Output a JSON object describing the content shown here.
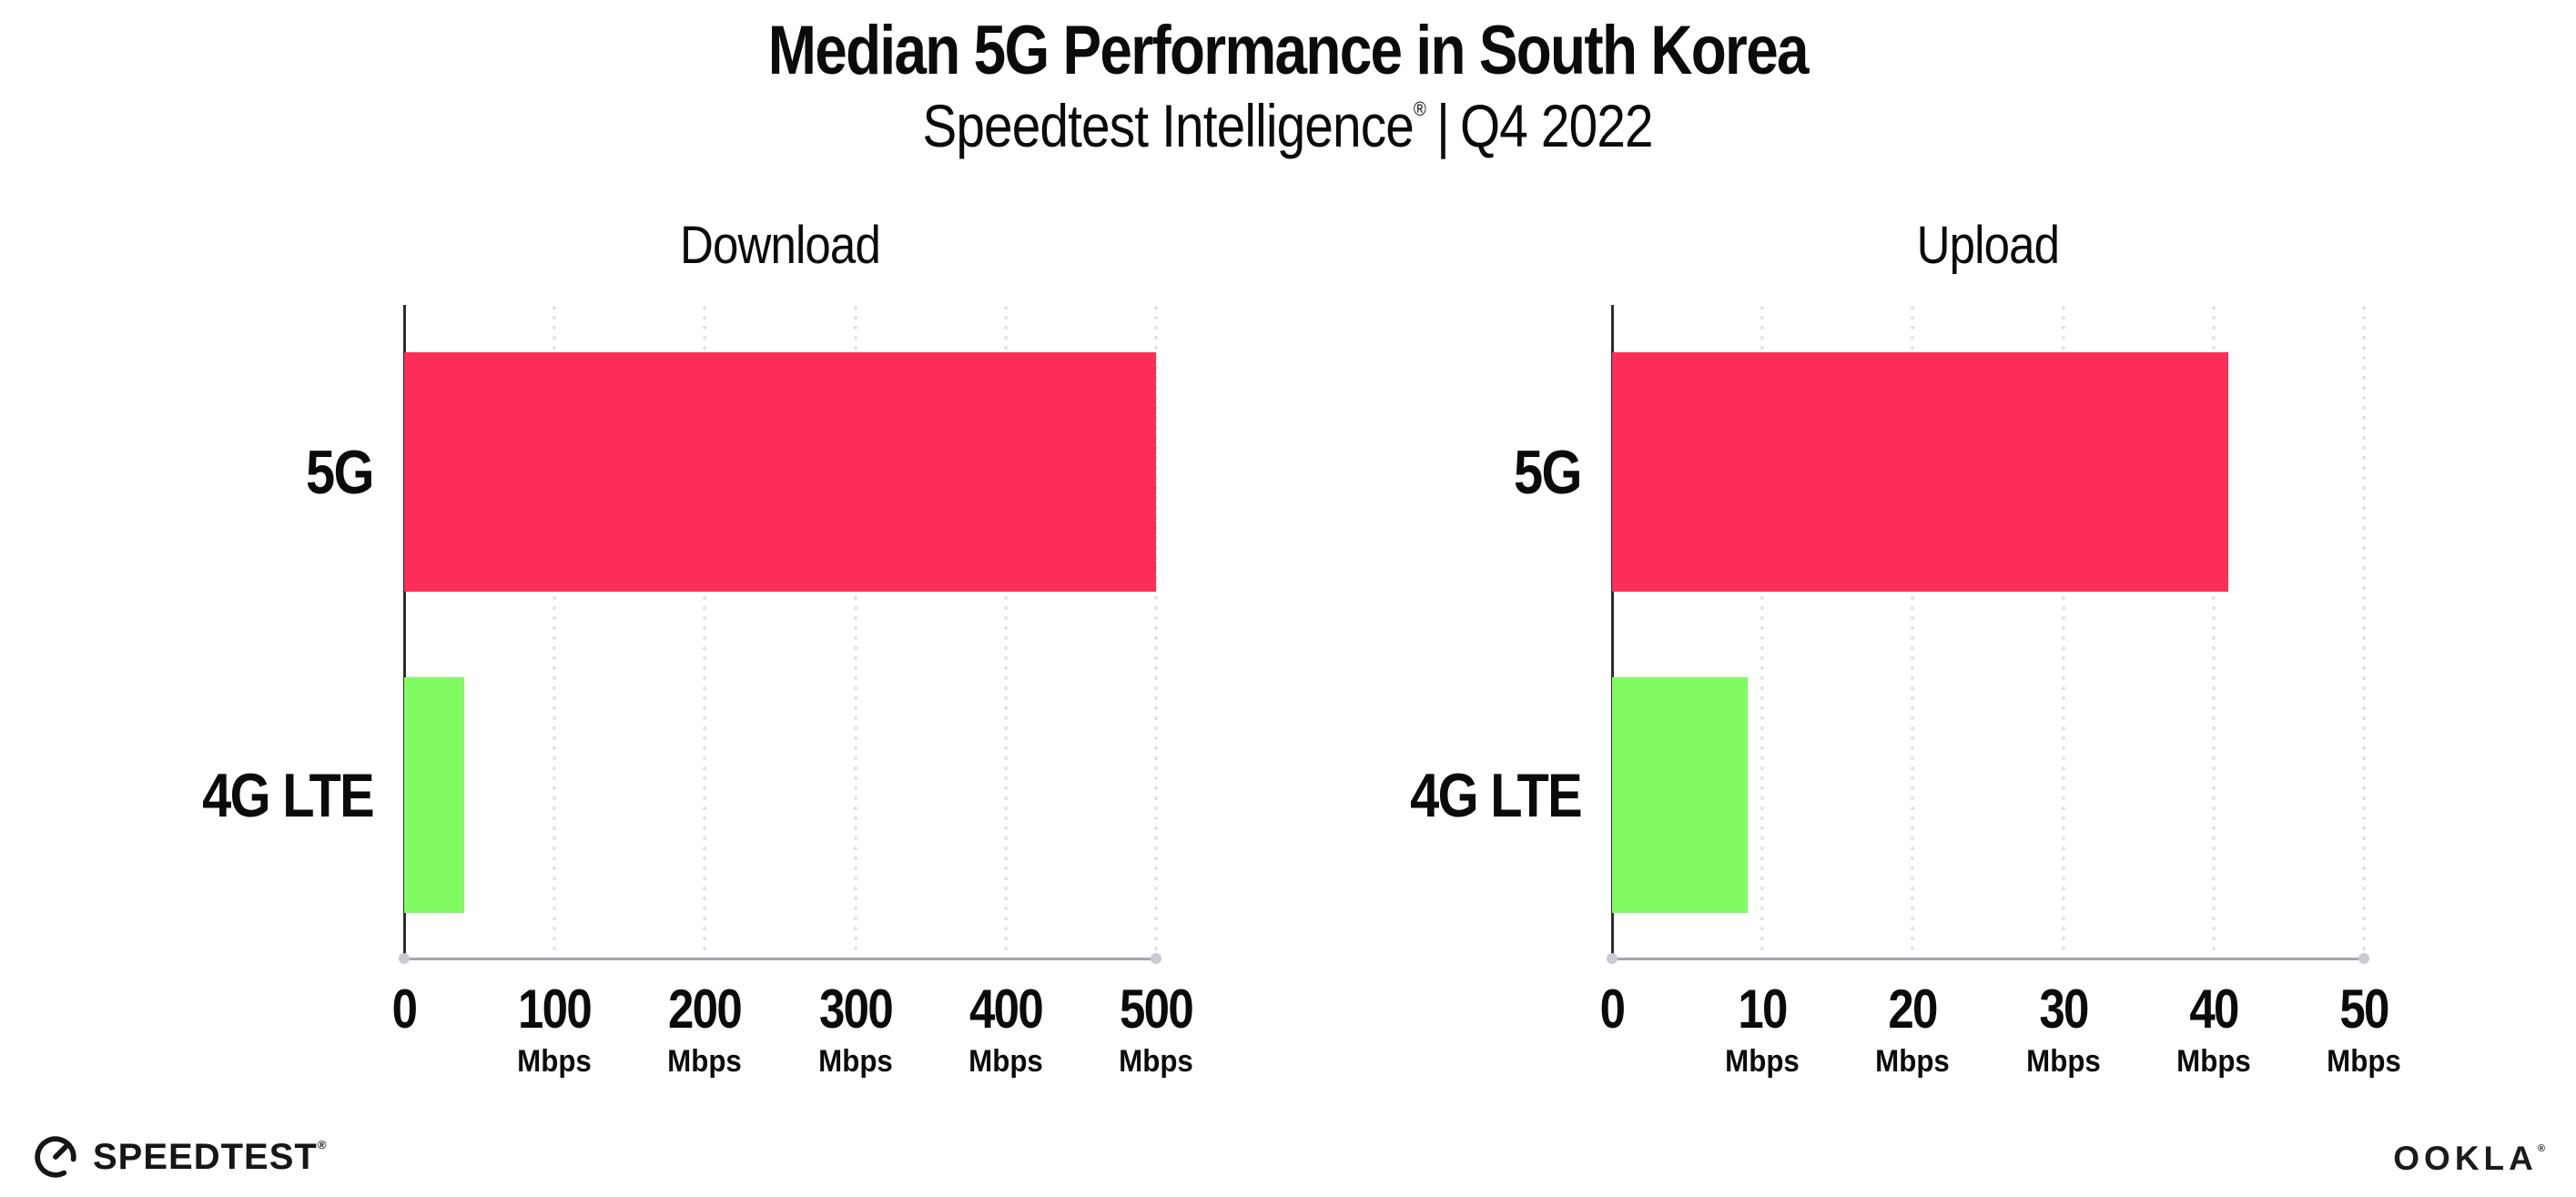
{
  "header": {
    "title": "Median 5G Performance in South Korea",
    "subtitle": {
      "brand": "Speedtest Intelligence",
      "registered": "®",
      "separator": "|",
      "period": "Q4 2022"
    }
  },
  "chart_data": [
    {
      "type": "bar",
      "orientation": "horizontal",
      "title": "Download",
      "categories": [
        "5G",
        "4G LTE"
      ],
      "values": [
        500,
        40
      ],
      "value_unit": "Mbps",
      "xlim": [
        0,
        500
      ],
      "x_ticks": [
        {
          "label": "0",
          "unit": ""
        },
        {
          "label": "100",
          "unit": "Mbps"
        },
        {
          "label": "200",
          "unit": "Mbps"
        },
        {
          "label": "300",
          "unit": "Mbps"
        },
        {
          "label": "400",
          "unit": "Mbps"
        },
        {
          "label": "500",
          "unit": "Mbps"
        }
      ],
      "bar_colors": [
        "#FD2D59",
        "#82FB62"
      ],
      "grid": "dotted-vertical"
    },
    {
      "type": "bar",
      "orientation": "horizontal",
      "title": "Upload",
      "categories": [
        "5G",
        "4G LTE"
      ],
      "values": [
        41,
        9
      ],
      "value_unit": "Mbps",
      "xlim": [
        0,
        50
      ],
      "x_ticks": [
        {
          "label": "0",
          "unit": ""
        },
        {
          "label": "10",
          "unit": "Mbps"
        },
        {
          "label": "20",
          "unit": "Mbps"
        },
        {
          "label": "30",
          "unit": "Mbps"
        },
        {
          "label": "40",
          "unit": "Mbps"
        },
        {
          "label": "50",
          "unit": "Mbps"
        }
      ],
      "bar_colors": [
        "#FD2D59",
        "#82FB62"
      ],
      "grid": "dotted-vertical"
    }
  ],
  "footer": {
    "speedtest": {
      "text": "SPEEDTEST",
      "registered": "®"
    },
    "ookla": {
      "text": "OOKLA",
      "registered": "®"
    }
  },
  "colors": {
    "bar_5g": "#FD2D59",
    "bar_4g_lte": "#82FB62",
    "grid_dots": "#DFDFE9",
    "x_axis_line": "#A5A5AD",
    "y_axis_line": "#2B2B33",
    "text": "#0B0B0C",
    "background": "#FFFFFF"
  }
}
